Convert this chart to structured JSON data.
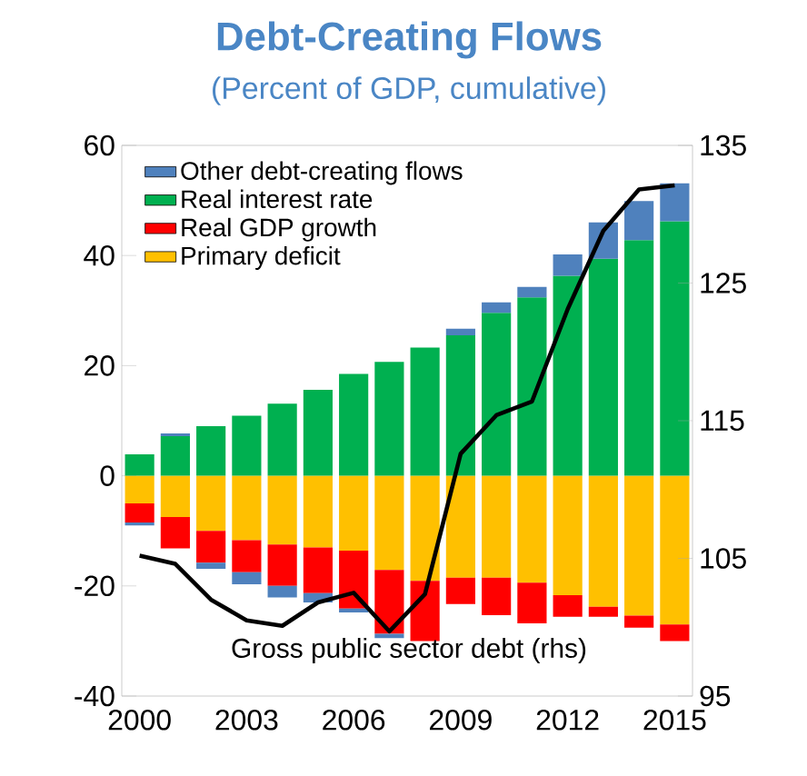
{
  "chart_data": {
    "type": "bar",
    "title": "Debt-Creating Flows",
    "subtitle": "(Percent of GDP, cumulative)",
    "stacked": true,
    "categories": [
      "2000",
      null,
      null,
      "2003",
      null,
      null,
      "2006",
      null,
      null,
      "2009",
      null,
      null,
      "2012",
      null,
      null,
      "2015"
    ],
    "series": [
      {
        "name": "Primary deficit",
        "color": "#ffc000",
        "values": [
          -5.0,
          -7.5,
          -10.0,
          -11.7,
          -12.5,
          -13.0,
          -13.6,
          -17.1,
          -19.1,
          -18.5,
          -18.5,
          -19.4,
          -21.7,
          -23.8,
          -25.4,
          -27.0
        ]
      },
      {
        "name": "Real GDP growth",
        "color": "#ff0000",
        "values": [
          -3.5,
          -5.7,
          -5.8,
          -5.8,
          -7.5,
          -8.3,
          -10.5,
          -11.6,
          -10.9,
          -4.8,
          -6.8,
          -7.4,
          -3.9,
          -1.8,
          -2.2,
          -3.0
        ]
      },
      {
        "name": "Real interest rate",
        "color": "#00b050",
        "values": [
          3.9,
          7.2,
          9.0,
          10.9,
          13.1,
          15.6,
          18.5,
          20.7,
          23.3,
          25.5,
          29.6,
          32.4,
          36.3,
          39.4,
          42.8,
          46.2
        ]
      },
      {
        "name": "Other debt-creating flows",
        "color": "#4f81bd",
        "values": [
          -0.5,
          0.5,
          -1.1,
          -2.2,
          -2.1,
          -1.7,
          -0.7,
          -0.8,
          0,
          1.2,
          1.9,
          1.9,
          3.9,
          6.6,
          7.1,
          6.9
        ]
      },
      {
        "type": "line",
        "axis": "y2",
        "color": "#000000",
        "values": [
          105.2,
          104.6,
          102.0,
          100.5,
          100.1,
          101.8,
          102.5,
          99.7,
          102.4,
          112.6,
          115.4,
          116.4,
          123.1,
          128.8,
          131.8,
          132.1
        ]
      }
    ],
    "ylim": [
      -40,
      60
    ],
    "yticks": [
      -40,
      -20,
      0,
      20,
      40,
      60
    ],
    "y2lim": [
      95,
      135
    ],
    "y2ticks": [
      95,
      105,
      115,
      125,
      135
    ],
    "legend": "top left",
    "annotations": [
      "Gross public sector debt (rhs)"
    ]
  }
}
